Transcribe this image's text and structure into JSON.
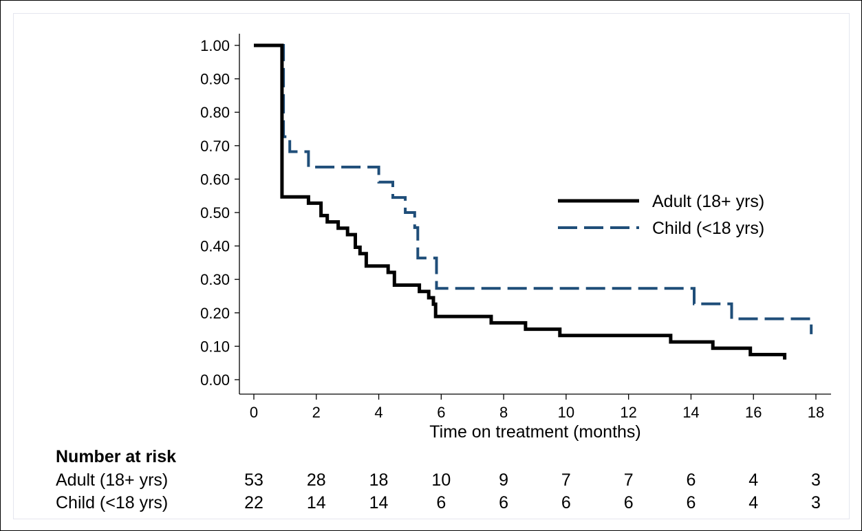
{
  "chart_data": {
    "type": "line",
    "subtype": "kaplan-meier step curves",
    "title": "",
    "xlabel": "Time on treatment (months)",
    "ylabel": "",
    "xlim": [
      0,
      18
    ],
    "ylim": [
      0,
      1
    ],
    "x_ticks": [
      "0",
      "2",
      "4",
      "6",
      "8",
      "10",
      "12",
      "14",
      "16",
      "18"
    ],
    "y_ticks": [
      "0.00",
      "0.10",
      "0.20",
      "0.30",
      "0.40",
      "0.50",
      "0.60",
      "0.70",
      "0.80",
      "0.90",
      "1.00"
    ],
    "grid": false,
    "legend_position": "right",
    "series": [
      {
        "name": "Adult (18+ yrs)",
        "color": "#000000",
        "style": "solid",
        "steps": [
          [
            0,
            1.0
          ],
          [
            0.9,
            1.0
          ],
          [
            0.9,
            0.547
          ],
          [
            1.75,
            0.547
          ],
          [
            1.75,
            0.528
          ],
          [
            2.15,
            0.528
          ],
          [
            2.15,
            0.491
          ],
          [
            2.35,
            0.491
          ],
          [
            2.35,
            0.472
          ],
          [
            2.7,
            0.472
          ],
          [
            2.7,
            0.453
          ],
          [
            3.0,
            0.453
          ],
          [
            3.0,
            0.434
          ],
          [
            3.25,
            0.434
          ],
          [
            3.25,
            0.396
          ],
          [
            3.4,
            0.396
          ],
          [
            3.4,
            0.377
          ],
          [
            3.6,
            0.377
          ],
          [
            3.6,
            0.34
          ],
          [
            4.3,
            0.34
          ],
          [
            4.3,
            0.321
          ],
          [
            4.5,
            0.321
          ],
          [
            4.5,
            0.283
          ],
          [
            5.3,
            0.283
          ],
          [
            5.3,
            0.264
          ],
          [
            5.6,
            0.264
          ],
          [
            5.6,
            0.245
          ],
          [
            5.75,
            0.245
          ],
          [
            5.75,
            0.226
          ],
          [
            5.82,
            0.226
          ],
          [
            5.82,
            0.189
          ],
          [
            7.6,
            0.189
          ],
          [
            7.6,
            0.17
          ],
          [
            8.7,
            0.17
          ],
          [
            8.7,
            0.151
          ],
          [
            9.8,
            0.151
          ],
          [
            9.8,
            0.132
          ],
          [
            13.35,
            0.132
          ],
          [
            13.35,
            0.113
          ],
          [
            14.7,
            0.113
          ],
          [
            14.7,
            0.094
          ],
          [
            15.9,
            0.094
          ],
          [
            15.9,
            0.075
          ],
          [
            17.0,
            0.075
          ],
          [
            17.0,
            0.06
          ]
        ]
      },
      {
        "name": "Child (<18 yrs)",
        "color": "#1f4e79",
        "style": "dashed",
        "steps": [
          [
            0,
            1.0
          ],
          [
            0.95,
            1.0
          ],
          [
            0.95,
            0.727
          ],
          [
            1.15,
            0.727
          ],
          [
            1.15,
            0.682
          ],
          [
            1.75,
            0.682
          ],
          [
            1.75,
            0.636
          ],
          [
            4.0,
            0.636
          ],
          [
            4.0,
            0.591
          ],
          [
            4.45,
            0.591
          ],
          [
            4.45,
            0.545
          ],
          [
            4.85,
            0.545
          ],
          [
            4.85,
            0.5
          ],
          [
            5.15,
            0.5
          ],
          [
            5.15,
            0.455
          ],
          [
            5.25,
            0.455
          ],
          [
            5.25,
            0.364
          ],
          [
            5.85,
            0.364
          ],
          [
            5.85,
            0.273
          ],
          [
            14.1,
            0.273
          ],
          [
            14.1,
            0.227
          ],
          [
            15.3,
            0.227
          ],
          [
            15.3,
            0.182
          ],
          [
            17.85,
            0.182
          ],
          [
            17.85,
            0.136
          ]
        ]
      }
    ],
    "risk_table": {
      "title": "Number at risk",
      "times": [
        0,
        2,
        4,
        6,
        8,
        10,
        12,
        14,
        16,
        18
      ],
      "rows": [
        {
          "label": "Adult (18+ yrs)",
          "values": [
            "53",
            "28",
            "18",
            "10",
            "9",
            "7",
            "7",
            "6",
            "4",
            "3"
          ]
        },
        {
          "label": "Child (<18 yrs)",
          "values": [
            "22",
            "14",
            "14",
            "6",
            "6",
            "6",
            "6",
            "6",
            "4",
            "3"
          ]
        }
      ]
    }
  }
}
